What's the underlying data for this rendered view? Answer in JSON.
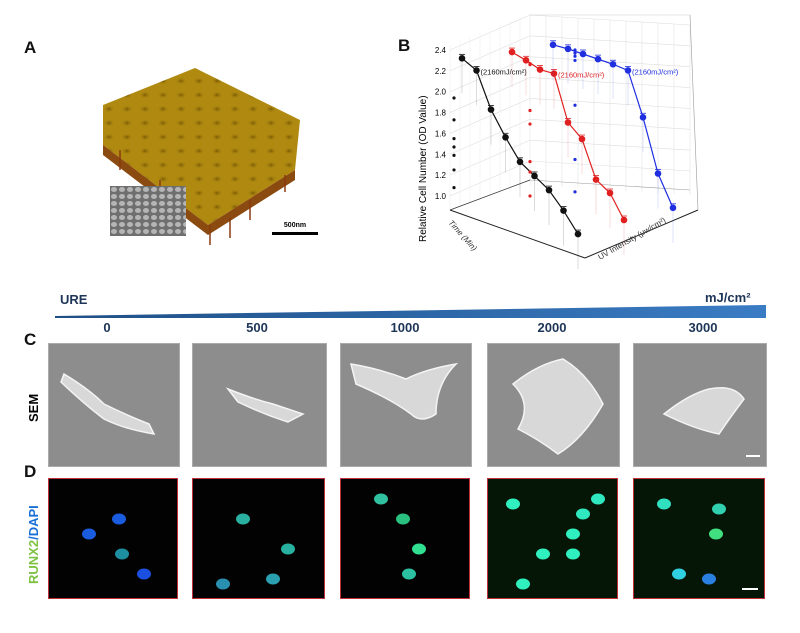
{
  "panels": {
    "a": "A",
    "b": "B",
    "c": "C",
    "d": "D"
  },
  "panel_a": {
    "scale_bar": "500nm",
    "surface_color": "#b08a10"
  },
  "gradient": {
    "left_label": "URE",
    "unit_label": "mJ/cm²",
    "color": "#2a5b94",
    "doses": [
      "0",
      "500",
      "1000",
      "2000",
      "3000"
    ]
  },
  "row_labels": {
    "sem": "SEM",
    "runx2": "RUNX2",
    "slash": "/",
    "dapi": "DAPI"
  },
  "colors": {
    "runx2": "#7dc242",
    "dapi": "#1a6fd6",
    "panel_border": "#c0303a"
  },
  "chart_data": {
    "type": "line",
    "projection": "3d",
    "ylabel": "Relative Cell Number (OD Value)",
    "xlabel": "Time (Min)",
    "zlabel": "UV Intensity (μw/cm²)",
    "ylim": [
      1.0,
      2.4
    ],
    "yticks": [
      "1.0",
      "1.2",
      "1.4",
      "1.6",
      "1.8",
      "2.0",
      "2.2",
      "2.4"
    ],
    "grid": true,
    "series": [
      {
        "name": "black",
        "color": "#111111",
        "annotation": "(2160mJ/cm²)",
        "values": [
          2.32,
          2.26,
          1.94,
          1.73,
          1.55,
          1.47,
          1.39,
          1.25,
          1.08
        ]
      },
      {
        "name": "red",
        "color": "#e02020",
        "annotation": "(2160mJ/cm²)",
        "values": [
          2.38,
          2.33,
          2.27,
          2.26,
          1.82,
          1.69,
          1.33,
          1.23,
          1.0
        ]
      },
      {
        "name": "blue",
        "color": "#1f2fe0",
        "annotation": "(2160mJ/cm²)",
        "values": [
          2.45,
          2.43,
          2.4,
          2.37,
          2.34,
          2.3,
          1.87,
          1.35,
          1.04
        ]
      }
    ]
  }
}
